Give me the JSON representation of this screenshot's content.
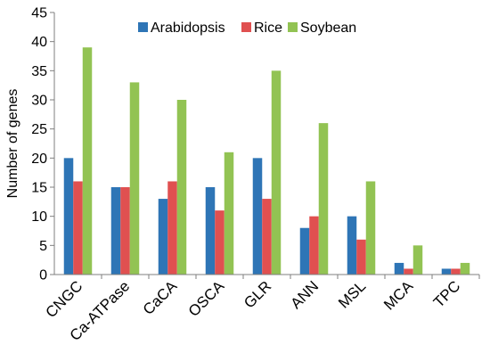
{
  "chart_data": {
    "type": "bar",
    "title": "",
    "xlabel": "",
    "ylabel": "Number of genes",
    "ylim": [
      0,
      45
    ],
    "yticks": [
      0,
      5,
      10,
      15,
      20,
      25,
      30,
      35,
      40,
      45
    ],
    "grid": false,
    "legend_position": "top-right",
    "categories": [
      "CNGC",
      "Ca-ATPase",
      "CaCA",
      "OSCA",
      "GLR",
      "ANN",
      "MSL",
      "MCA",
      "TPC"
    ],
    "series": [
      {
        "name": "Arabidopsis",
        "color": "#2e75b6",
        "values": [
          20,
          15,
          13,
          15,
          20,
          8,
          10,
          2,
          1
        ]
      },
      {
        "name": "Rice",
        "color": "#e05050",
        "values": [
          16,
          15,
          16,
          11,
          13,
          10,
          6,
          1,
          1
        ]
      },
      {
        "name": "Soybean",
        "color": "#92c353",
        "values": [
          39,
          33,
          30,
          21,
          35,
          26,
          16,
          5,
          2
        ]
      }
    ]
  }
}
